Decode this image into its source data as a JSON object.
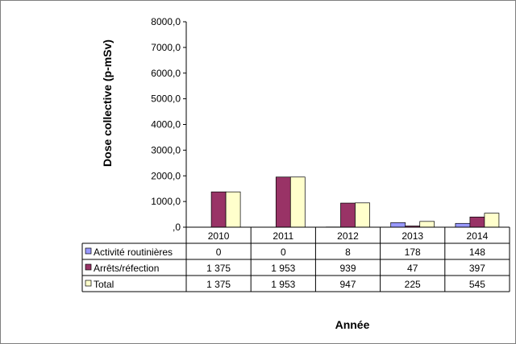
{
  "chart_data": {
    "type": "bar",
    "title": "",
    "xlabel": "Année",
    "ylabel": "Dose collective (p-mSv)",
    "ylim": [
      0,
      8000
    ],
    "yticks": [
      "8000,0",
      "7000,0",
      "6000,0",
      "5000,0",
      "4000,0",
      "3000,0",
      "2000,0",
      "1000,0",
      ",0"
    ],
    "ytick_values": [
      8000,
      7000,
      6000,
      5000,
      4000,
      3000,
      2000,
      1000,
      0
    ],
    "categories": [
      "2010",
      "2011",
      "2012",
      "2013",
      "2014"
    ],
    "series": [
      {
        "name": "Activité routinières",
        "color": "#9999ff",
        "values": [
          0,
          0,
          8,
          178,
          148
        ],
        "labels": [
          "0",
          "0",
          "8",
          "178",
          "148"
        ]
      },
      {
        "name": "Arrêts/réfection",
        "color": "#993366",
        "values": [
          1375,
          1953,
          939,
          47,
          397
        ],
        "labels": [
          "1 375",
          "1 953",
          "939",
          "47",
          "397"
        ]
      },
      {
        "name": "Total",
        "color": "#ffffcc",
        "values": [
          1375,
          1953,
          947,
          225,
          545
        ],
        "labels": [
          "1 375",
          "1 953",
          "947",
          "225",
          "545"
        ]
      }
    ],
    "grid": false,
    "legend": "data-table"
  }
}
